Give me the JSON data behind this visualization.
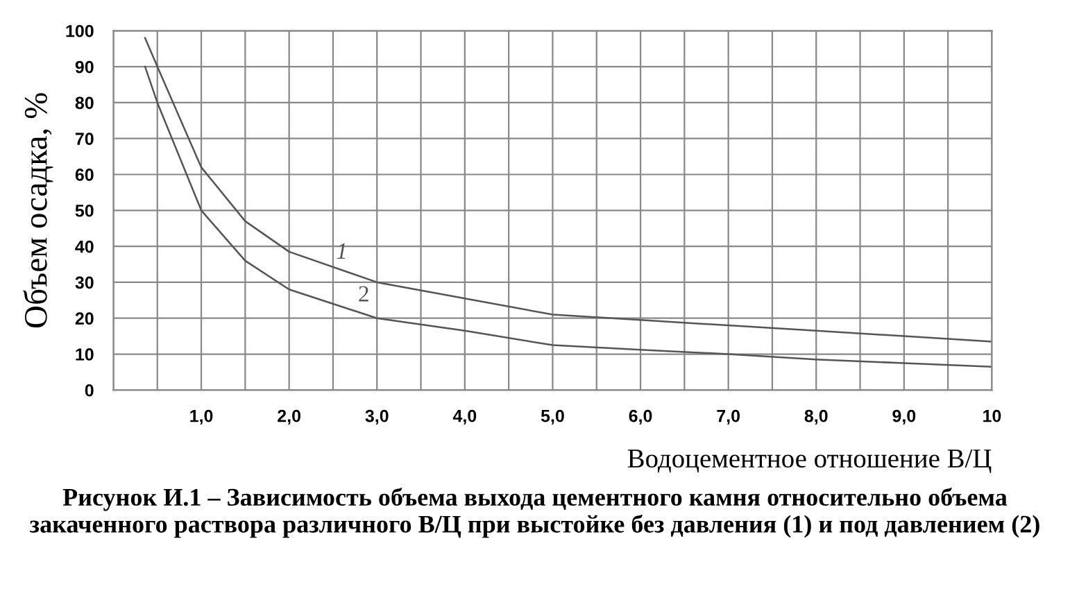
{
  "chart_data": {
    "type": "line",
    "title": "Рисунок И.1 – Зависимость объема выхода цементного камня относительно объема закаченного раствора различного В/Ц при выстойке без давления (1) и под давлением (2)",
    "xlabel": "Водоцементное отношение В/Ц",
    "ylabel": "Объем осадка, %",
    "series": [
      {
        "name": "1",
        "color": "#555555",
        "x": [
          0.36,
          0.5,
          1.0,
          1.5,
          2.0,
          3.0,
          4.0,
          5.0,
          6.0,
          7.0,
          8.0,
          9.0,
          10
        ],
        "values": [
          98,
          90,
          62,
          47,
          38.5,
          30,
          25.5,
          21,
          19.5,
          18,
          16.5,
          15,
          13.5
        ]
      },
      {
        "name": "2",
        "color": "#555555",
        "x": [
          0.36,
          0.5,
          1.0,
          1.5,
          2.0,
          3.0,
          4.0,
          5.0,
          6.0,
          7.0,
          8.0,
          9.0,
          10
        ],
        "values": [
          90,
          80,
          50,
          36,
          28,
          20,
          16.5,
          12.5,
          11.2,
          10,
          8.5,
          7.5,
          6.5
        ]
      }
    ],
    "xlim": [
      0,
      10
    ],
    "xticks": [
      {
        "value": 0,
        "label": null
      },
      {
        "value": 0.5,
        "label": null
      },
      {
        "value": 1,
        "label": "1,0"
      },
      {
        "value": 1.5,
        "label": null
      },
      {
        "value": 2,
        "label": "2,0"
      },
      {
        "value": 2.5,
        "label": null
      },
      {
        "value": 3,
        "label": "3,0"
      },
      {
        "value": 3.5,
        "label": null
      },
      {
        "value": 4,
        "label": "4,0"
      },
      {
        "value": 4.5,
        "label": null
      },
      {
        "value": 5,
        "label": "5,0"
      },
      {
        "value": 5.5,
        "label": null
      },
      {
        "value": 6,
        "label": "6,0"
      },
      {
        "value": 6.5,
        "label": null
      },
      {
        "value": 7,
        "label": "7,0"
      },
      {
        "value": 7.5,
        "label": null
      },
      {
        "value": 8,
        "label": "8,0"
      },
      {
        "value": 8.5,
        "label": null
      },
      {
        "value": 9,
        "label": "9,0"
      },
      {
        "value": 9.5,
        "label": null
      },
      {
        "value": 10,
        "label": "10"
      }
    ],
    "ylim": [
      0,
      100
    ],
    "yticks": [
      0,
      10,
      20,
      30,
      40,
      50,
      60,
      70,
      80,
      90,
      100
    ],
    "grid": true,
    "legend": false,
    "marker": "none",
    "line_style": "solid"
  }
}
